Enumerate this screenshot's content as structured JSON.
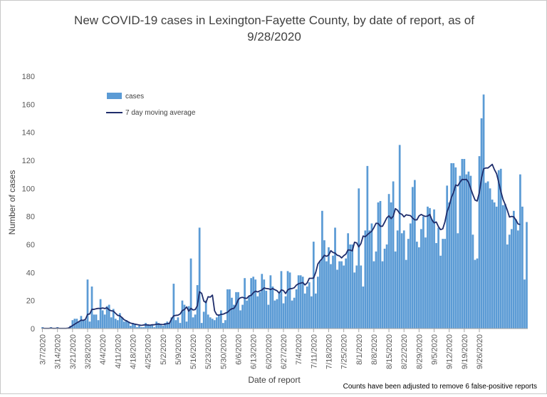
{
  "chart_data": {
    "type": "bar",
    "title": "New COVID-19 cases in Lexington-Fayette County, by date of report, as of 9/28/2020",
    "title_lines": [
      "New COVID-19 cases in Lexington-Fayette County, by date of report, as of",
      "9/28/2020"
    ],
    "xlabel": "Date of report",
    "ylabel": "Number of cases",
    "ylim": [
      0,
      180
    ],
    "yticks": [
      0,
      20,
      40,
      60,
      80,
      100,
      120,
      140,
      160,
      180
    ],
    "x_start": "3/7/2020",
    "x_ticks": [
      "3/7/2020",
      "3/14/2020",
      "3/21/2020",
      "3/28/2020",
      "4/4/2020",
      "4/11/2020",
      "4/18/2020",
      "4/25/2020",
      "5/2/2020",
      "5/9/2020",
      "5/16/2020",
      "5/23/2020",
      "5/30/2020",
      "6/6/2020",
      "6/13/2020",
      "6/20/2020",
      "6/27/2020",
      "7/4/2020",
      "7/11/2020",
      "7/18/2020",
      "7/25/2020",
      "8/1/2020",
      "8/8/2020",
      "8/15/2020",
      "8/22/2020",
      "8/29/2020",
      "9/5/2020",
      "9/12/2020",
      "9/19/2020",
      "9/26/2020"
    ],
    "grid": false,
    "legend_position": "top-left",
    "legend": {
      "bars": "cases",
      "line": "7 day moving average"
    },
    "footnote": "Counts have been adjusted to remove 6 false-positive reports",
    "colors": {
      "bars": "#5b9bd5",
      "line": "#1f2d6b"
    },
    "series": [
      {
        "name": "cases",
        "type": "bar",
        "values": [
          1,
          0,
          0,
          0,
          1,
          0,
          0,
          1,
          0,
          0,
          0,
          0,
          0,
          2,
          6,
          7,
          7,
          5,
          9,
          6,
          6,
          35,
          5,
          30,
          10,
          10,
          6,
          21,
          13,
          10,
          16,
          17,
          8,
          14,
          7,
          6,
          11,
          8,
          5,
          6,
          5,
          2,
          4,
          3,
          1,
          2,
          1,
          1,
          4,
          3,
          2,
          3,
          1,
          5,
          4,
          3,
          2,
          4,
          5,
          4,
          8,
          32,
          6,
          8,
          4,
          20,
          17,
          5,
          16,
          50,
          8,
          10,
          31,
          72,
          4,
          12,
          20,
          10,
          8,
          7,
          6,
          8,
          10,
          13,
          4,
          6,
          28,
          28,
          22,
          17,
          26,
          26,
          13,
          17,
          36,
          20,
          23,
          36,
          37,
          35,
          23,
          26,
          39,
          35,
          27,
          17,
          38,
          30,
          20,
          21,
          25,
          41,
          18,
          23,
          41,
          40,
          20,
          22,
          28,
          38,
          38,
          37,
          25,
          30,
          33,
          23,
          62,
          25,
          37,
          48,
          84,
          63,
          48,
          58,
          46,
          52,
          72,
          42,
          48,
          48,
          45,
          50,
          68,
          60,
          60,
          40,
          45,
          100,
          45,
          30,
          70,
          116,
          70,
          75,
          48,
          55,
          90,
          91,
          48,
          57,
          60,
          96,
          90,
          105,
          55,
          70,
          131,
          68,
          70,
          49,
          64,
          75,
          101,
          106,
          62,
          58,
          71,
          80,
          65,
          87,
          86,
          78,
          85,
          61,
          72,
          52,
          64,
          64,
          102,
          90,
          118,
          118,
          115,
          68,
          109,
          121,
          121,
          110,
          112,
          109,
          67,
          49,
          50,
          123,
          150,
          167,
          104,
          105,
          100,
          92,
          90,
          87,
          113,
          114,
          88,
          89,
          60,
          67,
          71,
          84,
          78,
          70,
          110,
          87,
          35,
          76
        ]
      },
      {
        "name": "7 day moving average",
        "type": "line",
        "values": [
          0.29,
          0.14,
          0.14,
          0.14,
          0.29,
          0.14,
          0.14,
          0.29,
          0.14,
          0.14,
          0.14,
          0.14,
          0.29,
          1.14,
          2.14,
          3.14,
          4.14,
          5.0,
          6.0,
          5.86,
          6.57,
          10.14,
          10.43,
          13.71,
          13.71,
          14.14,
          14.43,
          14.29,
          14.71,
          14.29,
          14.86,
          13.29,
          12.71,
          12.43,
          10.86,
          9.43,
          9.14,
          7.86,
          6.29,
          5.57,
          4.71,
          3.86,
          3.57,
          3.14,
          2.86,
          2.57,
          2.29,
          2.57,
          2.71,
          2.57,
          2.43,
          2.71,
          2.71,
          3.14,
          3.14,
          3.0,
          2.86,
          3.14,
          3.57,
          3.71,
          6.86,
          9.14,
          9.43,
          9.57,
          10.43,
          12.86,
          13.57,
          15.43,
          12.43,
          14.43,
          13.29,
          13.57,
          16.29,
          26.29,
          25.14,
          19.57,
          18.57,
          22.71,
          22.43,
          23.86,
          12.71,
          9.86,
          9.57,
          10.14,
          10.29,
          11.0,
          11.57,
          13.14,
          14.14,
          14.43,
          16.86,
          20.71,
          22.0,
          22.29,
          21.71,
          21.57,
          23.29,
          23.71,
          25.57,
          26.71,
          26.14,
          26.86,
          27.57,
          29.0,
          28.57,
          28.43,
          27.86,
          28.57,
          27.71,
          27.0,
          25.29,
          27.57,
          27.14,
          25.0,
          27.57,
          28.43,
          28.57,
          29.14,
          31.0,
          32.0,
          32.43,
          32.86,
          31.14,
          32.57,
          35.86,
          35.86,
          36.0,
          40.14,
          46.14,
          48.29,
          50.0,
          52.29,
          51.57,
          52.43,
          55.57,
          54.29,
          53.86,
          52.29,
          51.86,
          50.43,
          52.0,
          53.14,
          56.14,
          56.0,
          55.43,
          61.57,
          61.14,
          58.29,
          60.71,
          66.0,
          65.57,
          67.0,
          68.29,
          69.43,
          72.0,
          75.14,
          75.0,
          73.0,
          73.0,
          75.86,
          79.0,
          80.43,
          78.43,
          80.14,
          85.57,
          84.43,
          82.14,
          81.57,
          79.71,
          81.14,
          80.86,
          80.57,
          78.86,
          77.57,
          77.57,
          80.43,
          81.43,
          80.57,
          80.0,
          80.29,
          81.43,
          77.43,
          75.43,
          76.0,
          72.71,
          70.57,
          71.14,
          76.0,
          83.43,
          87.43,
          93.57,
          97.0,
          102.43,
          101.86,
          104.43,
          106.43,
          106.29,
          106.43,
          104.29,
          99.86,
          95.57,
          91.71,
          91.0,
          97.0,
          107.29,
          114.0,
          114.57,
          114.57,
          115.86,
          117.14,
          113.43,
          110.57,
          104.43,
          97.86,
          92.14,
          88.57,
          84.43,
          79.57,
          80.0,
          79.71,
          77.43,
          74.57,
          74.29
        ]
      }
    ]
  }
}
